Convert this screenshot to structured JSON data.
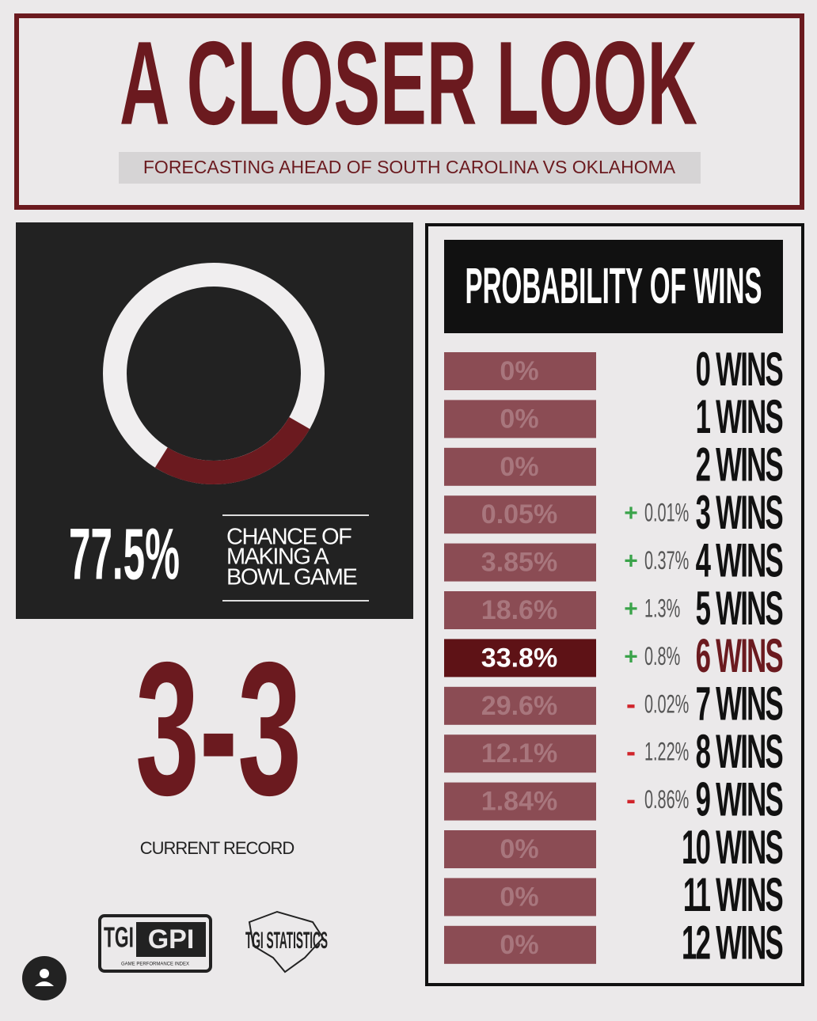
{
  "header": {
    "title": "A CLOSER LOOK",
    "subtitle": "FORECASTING AHEAD OF SOUTH CAROLINA VS OKLAHOMA"
  },
  "bowl": {
    "percent": "77.5%",
    "caption": [
      "CHANCE OF",
      "MAKING A",
      "BOWL GAME"
    ]
  },
  "record": {
    "value": "3-3",
    "label": "CURRENT RECORD"
  },
  "probabilities": {
    "title": "PROBABILITY OF WINS",
    "highlight": 6,
    "rows": [
      {
        "probability": "0%",
        "wins": "0 WINS"
      },
      {
        "probability": "0%",
        "wins": "1 WINS"
      },
      {
        "probability": "0%",
        "wins": "2 WINS"
      },
      {
        "probability": "0.05%",
        "sign": "+",
        "change": "0.01%",
        "wins": "3 WINS"
      },
      {
        "probability": "3.85%",
        "sign": "+",
        "change": "0.37%",
        "wins": "4 WINS"
      },
      {
        "probability": "18.6%",
        "sign": "+",
        "change": "1.3%",
        "wins": "5 WINS"
      },
      {
        "probability": "33.8%",
        "sign": "+",
        "change": "0.8%",
        "wins": "6 WINS"
      },
      {
        "probability": "29.6%",
        "sign": "-",
        "change": "0.02%",
        "wins": "7 WINS"
      },
      {
        "probability": "12.1%",
        "sign": "-",
        "change": "1.22%",
        "wins": "8 WINS"
      },
      {
        "probability": "1.84%",
        "sign": "-",
        "change": "0.86%",
        "wins": "9 WINS"
      },
      {
        "probability": "0%",
        "wins": "10 WINS"
      },
      {
        "probability": "0%",
        "wins": "11 WINS"
      },
      {
        "probability": "0%",
        "wins": "12 WINS"
      }
    ]
  },
  "logos": {
    "gpi_left": "TGI",
    "gpi_right": "GPI",
    "gpi_sub": "GAME PERFORMANCE INDEX",
    "statistics": "TGI STATISTICS"
  }
}
